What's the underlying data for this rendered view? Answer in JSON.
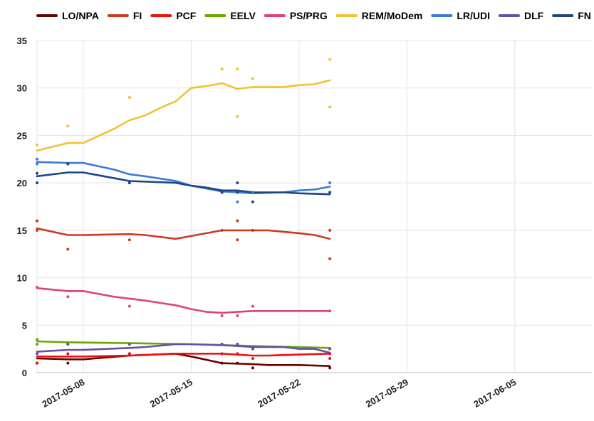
{
  "chart_data": {
    "type": "line",
    "title": "",
    "xlabel": "",
    "ylabel": "",
    "x_type": "date",
    "xlim": [
      "2017-05-05",
      "2017-06-10"
    ],
    "ylim": [
      0,
      35
    ],
    "y_ticks": [
      0,
      5,
      10,
      15,
      20,
      25,
      30,
      35
    ],
    "x_ticks": [
      "2017-05-08",
      "2017-05-15",
      "2017-05-22",
      "2017-05-29",
      "2017-06-05"
    ],
    "grid": true,
    "legend_position": "top",
    "series": [
      {
        "name": "LO/NPA",
        "color": "#6b0000",
        "line": [
          [
            "2017-05-05",
            1.5
          ],
          [
            "2017-05-07",
            1.4
          ],
          [
            "2017-05-08",
            1.4
          ],
          [
            "2017-05-11",
            1.8
          ],
          [
            "2017-05-14",
            2.0
          ],
          [
            "2017-05-15",
            1.7
          ],
          [
            "2017-05-17",
            1.0
          ],
          [
            "2017-05-19",
            0.9
          ],
          [
            "2017-05-20",
            0.8
          ],
          [
            "2017-05-22",
            0.8
          ],
          [
            "2017-05-24",
            0.7
          ]
        ],
        "points": [
          [
            "2017-05-05",
            1.0
          ],
          [
            "2017-05-07",
            1.0
          ],
          [
            "2017-05-11",
            2.0
          ],
          [
            "2017-05-17",
            1.0
          ],
          [
            "2017-05-18",
            1.0
          ],
          [
            "2017-05-19",
            0.5
          ],
          [
            "2017-05-24",
            0.5
          ]
        ]
      },
      {
        "name": "FI",
        "color": "#cc3a1e",
        "line": [
          [
            "2017-05-05",
            15.2
          ],
          [
            "2017-05-07",
            14.5
          ],
          [
            "2017-05-08",
            14.5
          ],
          [
            "2017-05-11",
            14.6
          ],
          [
            "2017-05-12",
            14.5
          ],
          [
            "2017-05-14",
            14.1
          ],
          [
            "2017-05-15",
            14.4
          ],
          [
            "2017-05-17",
            15.0
          ],
          [
            "2017-05-20",
            15.0
          ],
          [
            "2017-05-22",
            14.7
          ],
          [
            "2017-05-23",
            14.5
          ],
          [
            "2017-05-24",
            14.1
          ]
        ],
        "points": [
          [
            "2017-05-05",
            16.0
          ],
          [
            "2017-05-05",
            15.0
          ],
          [
            "2017-05-07",
            13.0
          ],
          [
            "2017-05-11",
            14.0
          ],
          [
            "2017-05-17",
            15.0
          ],
          [
            "2017-05-18",
            16.0
          ],
          [
            "2017-05-18",
            14.0
          ],
          [
            "2017-05-19",
            15.0
          ],
          [
            "2017-05-24",
            15.0
          ],
          [
            "2017-05-24",
            12.0
          ]
        ]
      },
      {
        "name": "PCF",
        "color": "#ee1111",
        "line": [
          [
            "2017-05-05",
            1.7
          ],
          [
            "2017-05-07",
            1.7
          ],
          [
            "2017-05-08",
            1.7
          ],
          [
            "2017-05-11",
            1.8
          ],
          [
            "2017-05-14",
            2.0
          ],
          [
            "2017-05-17",
            2.0
          ],
          [
            "2017-05-19",
            1.8
          ],
          [
            "2017-05-20",
            1.8
          ],
          [
            "2017-05-22",
            1.9
          ],
          [
            "2017-05-24",
            2.0
          ]
        ],
        "points": [
          [
            "2017-05-05",
            1.0
          ],
          [
            "2017-05-07",
            2.0
          ],
          [
            "2017-05-11",
            2.0
          ],
          [
            "2017-05-17",
            2.0
          ],
          [
            "2017-05-18",
            2.0
          ],
          [
            "2017-05-19",
            1.5
          ],
          [
            "2017-05-24",
            2.0
          ],
          [
            "2017-05-24",
            1.5
          ]
        ]
      },
      {
        "name": "EELV",
        "color": "#66aa00",
        "line": [
          [
            "2017-05-05",
            3.3
          ],
          [
            "2017-05-07",
            3.2
          ],
          [
            "2017-05-11",
            3.1
          ],
          [
            "2017-05-15",
            3.0
          ],
          [
            "2017-05-19",
            2.8
          ],
          [
            "2017-05-22",
            2.7
          ],
          [
            "2017-05-24",
            2.6
          ]
        ],
        "points": [
          [
            "2017-05-05",
            3.5
          ],
          [
            "2017-05-05",
            3.0
          ],
          [
            "2017-05-07",
            3.0
          ],
          [
            "2017-05-11",
            3.0
          ],
          [
            "2017-05-17",
            3.0
          ],
          [
            "2017-05-18",
            3.0
          ],
          [
            "2017-05-19",
            2.5
          ],
          [
            "2017-05-24",
            2.5
          ]
        ]
      },
      {
        "name": "PS/PRG",
        "color": "#dd4477",
        "line": [
          [
            "2017-05-05",
            8.9
          ],
          [
            "2017-05-07",
            8.6
          ],
          [
            "2017-05-08",
            8.6
          ],
          [
            "2017-05-10",
            8.0
          ],
          [
            "2017-05-11",
            7.8
          ],
          [
            "2017-05-12",
            7.6
          ],
          [
            "2017-05-14",
            7.1
          ],
          [
            "2017-05-15",
            6.7
          ],
          [
            "2017-05-16",
            6.4
          ],
          [
            "2017-05-17",
            6.3
          ],
          [
            "2017-05-18",
            6.4
          ],
          [
            "2017-05-19",
            6.5
          ],
          [
            "2017-05-22",
            6.5
          ],
          [
            "2017-05-24",
            6.5
          ]
        ],
        "points": [
          [
            "2017-05-05",
            9.0
          ],
          [
            "2017-05-07",
            8.0
          ],
          [
            "2017-05-11",
            7.0
          ],
          [
            "2017-05-17",
            6.0
          ],
          [
            "2017-05-18",
            6.0
          ],
          [
            "2017-05-19",
            7.0
          ],
          [
            "2017-05-24",
            6.5
          ]
        ]
      },
      {
        "name": "REM/MoDem",
        "color": "#f1c232",
        "line": [
          [
            "2017-05-05",
            23.4
          ],
          [
            "2017-05-07",
            24.2
          ],
          [
            "2017-05-08",
            24.2
          ],
          [
            "2017-05-10",
            25.7
          ],
          [
            "2017-05-11",
            26.6
          ],
          [
            "2017-05-12",
            27.1
          ],
          [
            "2017-05-13",
            27.9
          ],
          [
            "2017-05-14",
            28.6
          ],
          [
            "2017-05-15",
            30.0
          ],
          [
            "2017-05-16",
            30.2
          ],
          [
            "2017-05-17",
            30.5
          ],
          [
            "2017-05-18",
            29.9
          ],
          [
            "2017-05-19",
            30.1
          ],
          [
            "2017-05-21",
            30.1
          ],
          [
            "2017-05-22",
            30.3
          ],
          [
            "2017-05-23",
            30.4
          ],
          [
            "2017-05-24",
            30.8
          ]
        ],
        "points": [
          [
            "2017-05-05",
            24.0
          ],
          [
            "2017-05-07",
            26.0
          ],
          [
            "2017-05-11",
            29.0
          ],
          [
            "2017-05-17",
            32.0
          ],
          [
            "2017-05-18",
            32.0
          ],
          [
            "2017-05-18",
            27.0
          ],
          [
            "2017-05-19",
            31.0
          ],
          [
            "2017-05-24",
            33.0
          ],
          [
            "2017-05-24",
            28.0
          ]
        ]
      },
      {
        "name": "LR/UDI",
        "color": "#3c78d8",
        "line": [
          [
            "2017-05-05",
            22.2
          ],
          [
            "2017-05-07",
            22.1
          ],
          [
            "2017-05-08",
            22.1
          ],
          [
            "2017-05-10",
            21.4
          ],
          [
            "2017-05-11",
            20.9
          ],
          [
            "2017-05-12",
            20.7
          ],
          [
            "2017-05-14",
            20.2
          ],
          [
            "2017-05-15",
            19.7
          ],
          [
            "2017-05-17",
            19.1
          ],
          [
            "2017-05-18",
            19.0
          ],
          [
            "2017-05-19",
            18.9
          ],
          [
            "2017-05-21",
            19.0
          ],
          [
            "2017-05-22",
            19.2
          ],
          [
            "2017-05-23",
            19.3
          ],
          [
            "2017-05-24",
            19.6
          ]
        ],
        "points": [
          [
            "2017-05-05",
            22.5
          ],
          [
            "2017-05-05",
            22.0
          ],
          [
            "2017-05-07",
            22.0
          ],
          [
            "2017-05-11",
            20.0
          ],
          [
            "2017-05-17",
            19.0
          ],
          [
            "2017-05-18",
            18.0
          ],
          [
            "2017-05-19",
            19.0
          ],
          [
            "2017-05-24",
            20.0
          ]
        ]
      },
      {
        "name": "DLF",
        "color": "#674ea7",
        "line": [
          [
            "2017-05-05",
            2.2
          ],
          [
            "2017-05-07",
            2.4
          ],
          [
            "2017-05-08",
            2.4
          ],
          [
            "2017-05-11",
            2.6
          ],
          [
            "2017-05-12",
            2.7
          ],
          [
            "2017-05-14",
            3.0
          ],
          [
            "2017-05-15",
            3.0
          ],
          [
            "2017-05-17",
            2.9
          ],
          [
            "2017-05-18",
            2.8
          ],
          [
            "2017-05-19",
            2.7
          ],
          [
            "2017-05-21",
            2.7
          ],
          [
            "2017-05-22",
            2.5
          ],
          [
            "2017-05-23",
            2.5
          ],
          [
            "2017-05-24",
            2.1
          ]
        ],
        "points": [
          [
            "2017-05-05",
            2.0
          ],
          [
            "2017-05-07",
            3.0
          ],
          [
            "2017-05-11",
            3.0
          ],
          [
            "2017-05-17",
            3.0
          ],
          [
            "2017-05-18",
            3.0
          ],
          [
            "2017-05-19",
            2.5
          ],
          [
            "2017-05-24",
            2.5
          ]
        ]
      },
      {
        "name": "FN",
        "color": "#1c4587",
        "line": [
          [
            "2017-05-05",
            20.7
          ],
          [
            "2017-05-07",
            21.1
          ],
          [
            "2017-05-08",
            21.1
          ],
          [
            "2017-05-11",
            20.2
          ],
          [
            "2017-05-14",
            20.0
          ],
          [
            "2017-05-15",
            19.7
          ],
          [
            "2017-05-16",
            19.5
          ],
          [
            "2017-05-17",
            19.2
          ],
          [
            "2017-05-18",
            19.2
          ],
          [
            "2017-05-19",
            19.0
          ],
          [
            "2017-05-21",
            19.0
          ],
          [
            "2017-05-22",
            18.9
          ],
          [
            "2017-05-24",
            18.8
          ]
        ],
        "points": [
          [
            "2017-05-05",
            21.0
          ],
          [
            "2017-05-05",
            20.0
          ],
          [
            "2017-05-07",
            22.0
          ],
          [
            "2017-05-11",
            20.0
          ],
          [
            "2017-05-17",
            19.0
          ],
          [
            "2017-05-18",
            20.0
          ],
          [
            "2017-05-18",
            19.0
          ],
          [
            "2017-05-19",
            18.0
          ],
          [
            "2017-05-24",
            19.0
          ]
        ]
      }
    ]
  }
}
